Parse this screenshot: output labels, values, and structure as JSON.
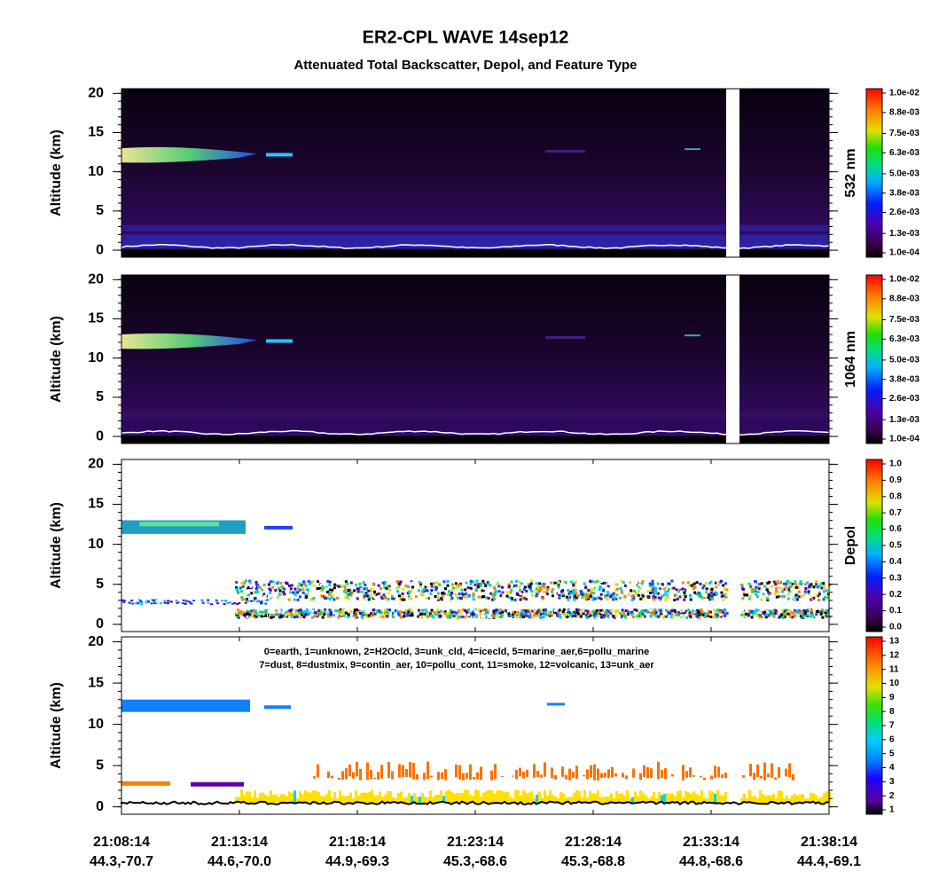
{
  "title": "ER2-CPL WAVE 14sep12",
  "subtitle": "Attenuated Total Backscatter, Depol, and Feature Type",
  "x_labels": [
    {
      "time": "21:08:14",
      "location": "44.3,-70.7"
    },
    {
      "time": "21:13:14",
      "location": "44.6,-70.0"
    },
    {
      "time": "21:18:14",
      "location": "44.9,-69.3"
    },
    {
      "time": "21:23:14",
      "location": "45.3,-68.6"
    },
    {
      "time": "21:28:14",
      "location": "45.3,-68.8"
    },
    {
      "time": "21:33:14",
      "location": "44.8,-68.6"
    },
    {
      "time": "21:38:14",
      "location": "44.4,-69.1"
    }
  ],
  "chart_data": [
    {
      "type": "heatmap",
      "y_label": "Altitude (km)",
      "ylim": [
        -0.9,
        20.6
      ],
      "yticks": [
        0,
        5,
        10,
        15,
        20
      ],
      "colorbar_label": "532 nm",
      "clim": [
        0.0001,
        0.01
      ],
      "cticks": [
        {
          "value": 0.0001,
          "label": "1.0e-04"
        },
        {
          "value": 0.0013,
          "label": "1.3e-03"
        },
        {
          "value": 0.0026,
          "label": "2.6e-03"
        },
        {
          "value": 0.0038,
          "label": "3.8e-03"
        },
        {
          "value": 0.005,
          "label": "5.0e-03"
        },
        {
          "value": 0.0063,
          "label": "6.3e-03"
        },
        {
          "value": 0.0075,
          "label": "7.5e-03"
        },
        {
          "value": 0.0088,
          "label": "8.8e-03"
        },
        {
          "value": 0.01,
          "label": "1.0e-02"
        }
      ]
    },
    {
      "type": "heatmap",
      "y_label": "Altitude (km)",
      "ylim": [
        -0.9,
        20.6
      ],
      "yticks": [
        0,
        5,
        10,
        15,
        20
      ],
      "colorbar_label": "1064 nm",
      "clim": [
        0.0001,
        0.01
      ],
      "cticks": [
        {
          "value": 0.0001,
          "label": "1.0e-04"
        },
        {
          "value": 0.0013,
          "label": "1.3e-03"
        },
        {
          "value": 0.0026,
          "label": "2.6e-03"
        },
        {
          "value": 0.0038,
          "label": "3.8e-03"
        },
        {
          "value": 0.005,
          "label": "5.0e-03"
        },
        {
          "value": 0.0063,
          "label": "6.3e-03"
        },
        {
          "value": 0.0075,
          "label": "7.5e-03"
        },
        {
          "value": 0.0088,
          "label": "8.8e-03"
        },
        {
          "value": 0.01,
          "label": "1.0e-02"
        }
      ]
    },
    {
      "type": "heatmap",
      "y_label": "Altitude (km)",
      "ylim": [
        -0.9,
        20.6
      ],
      "yticks": [
        0,
        5,
        10,
        15,
        20
      ],
      "colorbar_label": "Depol",
      "clim": [
        0,
        1
      ],
      "cticks": [
        {
          "value": 0,
          "label": "0.0"
        },
        0.1,
        0.2,
        0.3,
        0.4,
        0.5,
        0.6,
        0.7,
        0.8,
        0.9,
        {
          "value": 1,
          "label": "1.0"
        }
      ]
    },
    {
      "type": "feature",
      "y_label": "Altitude (km)",
      "ylim": [
        -0.9,
        20.6
      ],
      "yticks": [
        0,
        5,
        10,
        15,
        20
      ],
      "clim": [
        1,
        13
      ],
      "cticks": [
        1,
        2,
        3,
        4,
        5,
        6,
        7,
        8,
        9,
        10,
        11,
        12,
        13
      ],
      "annotation": [
        "0=earth, 1=unknown, 2=H2Ocld, 3=unk_cld, 4=icecld, 5=marine_aer,6=pollu_marine",
        "7=dust, 8=dustmix, 9=contin_aer, 10=pollu_cont, 11=smoke, 12=volcanic, 13=unk_aer"
      ]
    }
  ]
}
